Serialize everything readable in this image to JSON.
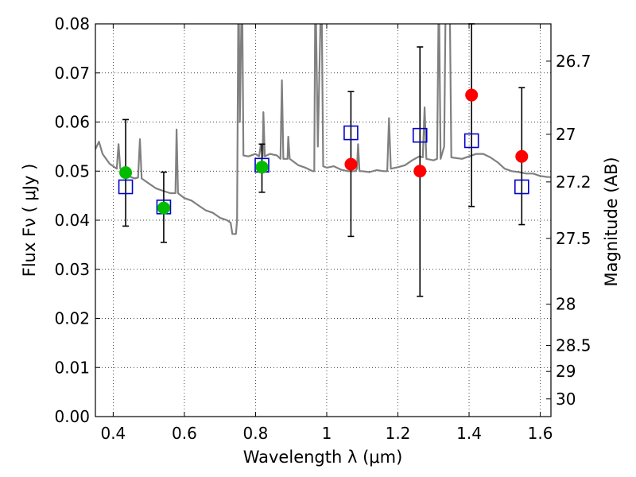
{
  "chart_data": {
    "type": "scatter",
    "title": "",
    "xlabel": "Wavelength  λ (μm)",
    "ylabel": "Flux  Fν  ( μJy )",
    "ylabel_right": "Magnitude (AB)",
    "xlim": [
      0.35,
      1.63
    ],
    "ylim": [
      0.0,
      0.08
    ],
    "grid": true,
    "x_ticks": [
      {
        "value": 0.4,
        "label": "0.4"
      },
      {
        "value": 0.6,
        "label": "0.6"
      },
      {
        "value": 0.8,
        "label": "0.8"
      },
      {
        "value": 1.0,
        "label": "1"
      },
      {
        "value": 1.2,
        "label": "1.2"
      },
      {
        "value": 1.4,
        "label": "1.4"
      },
      {
        "value": 1.6,
        "label": "1.6"
      }
    ],
    "y_ticks": [
      {
        "value": 0.0,
        "label": "0.00"
      },
      {
        "value": 0.01,
        "label": "0.01"
      },
      {
        "value": 0.02,
        "label": "0.02"
      },
      {
        "value": 0.03,
        "label": "0.03"
      },
      {
        "value": 0.04,
        "label": "0.04"
      },
      {
        "value": 0.05,
        "label": "0.05"
      },
      {
        "value": 0.06,
        "label": "0.06"
      },
      {
        "value": 0.07,
        "label": "0.07"
      },
      {
        "value": 0.08,
        "label": "0.08"
      }
    ],
    "right_ticks": [
      {
        "flux": 0.0724,
        "label": "26.7"
      },
      {
        "flux": 0.0575,
        "label": "27"
      },
      {
        "flux": 0.0478,
        "label": "27.2"
      },
      {
        "flux": 0.0363,
        "label": "27.5"
      },
      {
        "flux": 0.0229,
        "label": "28"
      },
      {
        "flux": 0.0145,
        "label": "28.5"
      },
      {
        "flux": 0.0092,
        "label": "29"
      },
      {
        "flux": 0.0036,
        "label": "30"
      }
    ],
    "colors": {
      "spectrum": "#808080",
      "model": "#0000cc",
      "green": "#00bb00",
      "red": "#ff0000",
      "errorbar": "#000000"
    },
    "spectrum": [
      [
        0.35,
        0.0545
      ],
      [
        0.36,
        0.056
      ],
      [
        0.37,
        0.0535
      ],
      [
        0.38,
        0.0525
      ],
      [
        0.39,
        0.0515
      ],
      [
        0.4,
        0.051
      ],
      [
        0.41,
        0.0505
      ],
      [
        0.415,
        0.0555
      ],
      [
        0.42,
        0.0505
      ],
      [
        0.43,
        0.05
      ],
      [
        0.44,
        0.049
      ],
      [
        0.45,
        0.0488
      ],
      [
        0.46,
        0.0485
      ],
      [
        0.47,
        0.0487
      ],
      [
        0.475,
        0.0565
      ],
      [
        0.48,
        0.0485
      ],
      [
        0.49,
        0.048
      ],
      [
        0.5,
        0.0475
      ],
      [
        0.52,
        0.0465
      ],
      [
        0.54,
        0.046
      ],
      [
        0.56,
        0.0455
      ],
      [
        0.575,
        0.0455
      ],
      [
        0.578,
        0.0585
      ],
      [
        0.582,
        0.0455
      ],
      [
        0.6,
        0.0445
      ],
      [
        0.62,
        0.044
      ],
      [
        0.64,
        0.043
      ],
      [
        0.66,
        0.042
      ],
      [
        0.68,
        0.0415
      ],
      [
        0.7,
        0.0405
      ],
      [
        0.72,
        0.04
      ],
      [
        0.73,
        0.0395
      ],
      [
        0.735,
        0.0372
      ],
      [
        0.745,
        0.0372
      ],
      [
        0.748,
        0.04
      ],
      [
        0.752,
        0.09
      ],
      [
        0.756,
        0.06
      ],
      [
        0.762,
        0.09
      ],
      [
        0.766,
        0.0532
      ],
      [
        0.78,
        0.053
      ],
      [
        0.8,
        0.0535
      ],
      [
        0.81,
        0.053
      ],
      [
        0.815,
        0.0555
      ],
      [
        0.82,
        0.053
      ],
      [
        0.822,
        0.062
      ],
      [
        0.826,
        0.053
      ],
      [
        0.84,
        0.0535
      ],
      [
        0.86,
        0.0532
      ],
      [
        0.87,
        0.0525
      ],
      [
        0.874,
        0.0685
      ],
      [
        0.878,
        0.0525
      ],
      [
        0.89,
        0.0525
      ],
      [
        0.892,
        0.057
      ],
      [
        0.896,
        0.0525
      ],
      [
        0.92,
        0.0512
      ],
      [
        0.94,
        0.0507
      ],
      [
        0.96,
        0.05
      ],
      [
        0.965,
        0.05
      ],
      [
        0.968,
        0.09
      ],
      [
        0.975,
        0.055
      ],
      [
        0.985,
        0.09
      ],
      [
        0.99,
        0.051
      ],
      [
        1.0,
        0.0507
      ],
      [
        1.02,
        0.051
      ],
      [
        1.04,
        0.0503
      ],
      [
        1.06,
        0.05
      ],
      [
        1.08,
        0.05
      ],
      [
        1.085,
        0.0505
      ],
      [
        1.088,
        0.0555
      ],
      [
        1.092,
        0.05
      ],
      [
        1.1,
        0.05
      ],
      [
        1.12,
        0.0498
      ],
      [
        1.14,
        0.0502
      ],
      [
        1.16,
        0.05
      ],
      [
        1.17,
        0.05
      ],
      [
        1.175,
        0.0608
      ],
      [
        1.18,
        0.0505
      ],
      [
        1.2,
        0.0508
      ],
      [
        1.22,
        0.0512
      ],
      [
        1.24,
        0.0522
      ],
      [
        1.26,
        0.053
      ],
      [
        1.27,
        0.0528
      ],
      [
        1.275,
        0.063
      ],
      [
        1.28,
        0.0525
      ],
      [
        1.3,
        0.0522
      ],
      [
        1.31,
        0.0525
      ],
      [
        1.315,
        0.088
      ],
      [
        1.32,
        0.0525
      ],
      [
        1.33,
        0.055
      ],
      [
        1.335,
        0.09
      ],
      [
        1.345,
        0.09
      ],
      [
        1.35,
        0.0528
      ],
      [
        1.38,
        0.0525
      ],
      [
        1.4,
        0.053
      ],
      [
        1.42,
        0.0535
      ],
      [
        1.44,
        0.0535
      ],
      [
        1.46,
        0.0528
      ],
      [
        1.48,
        0.0518
      ],
      [
        1.5,
        0.0505
      ],
      [
        1.52,
        0.05
      ],
      [
        1.54,
        0.0498
      ],
      [
        1.56,
        0.0495
      ],
      [
        1.58,
        0.0495
      ],
      [
        1.6,
        0.049
      ],
      [
        1.62,
        0.0488
      ],
      [
        1.63,
        0.0488
      ]
    ],
    "model_points": [
      {
        "x": 0.435,
        "y": 0.0468
      },
      {
        "x": 0.542,
        "y": 0.0427
      },
      {
        "x": 0.818,
        "y": 0.0512
      },
      {
        "x": 1.068,
        "y": 0.0578
      },
      {
        "x": 1.262,
        "y": 0.0573
      },
      {
        "x": 1.407,
        "y": 0.0562
      },
      {
        "x": 1.548,
        "y": 0.0468
      }
    ],
    "observed_points": [
      {
        "x": 0.435,
        "y": 0.0497,
        "yerr_low": 0.0388,
        "yerr_high": 0.0605,
        "color": "green"
      },
      {
        "x": 0.542,
        "y": 0.0425,
        "yerr_low": 0.0355,
        "yerr_high": 0.0498,
        "color": "green"
      },
      {
        "x": 0.818,
        "y": 0.0508,
        "yerr_low": 0.0457,
        "yerr_high": 0.0555,
        "color": "green"
      },
      {
        "x": 1.068,
        "y": 0.0514,
        "yerr_low": 0.0367,
        "yerr_high": 0.0662,
        "color": "red"
      },
      {
        "x": 1.262,
        "y": 0.05,
        "yerr_low": 0.0245,
        "yerr_high": 0.0753,
        "color": "red"
      },
      {
        "x": 1.407,
        "y": 0.0655,
        "yerr_low": 0.0428,
        "yerr_high": 0.08,
        "color": "red"
      },
      {
        "x": 1.548,
        "y": 0.053,
        "yerr_low": 0.0391,
        "yerr_high": 0.067,
        "color": "red"
      }
    ]
  }
}
